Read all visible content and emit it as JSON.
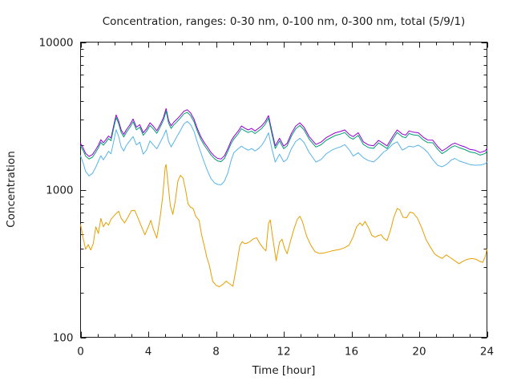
{
  "figure": {
    "title": "Concentration, ranges: 0-30 nm, 0-100 nm, 0-300 nm, total (5/9/1)",
    "xlabel": "Time [hour]",
    "ylabel": "Concentration"
  },
  "chart_data": {
    "type": "line",
    "title": "Concentration, ranges: 0-30 nm, 0-100 nm, 0-300 nm, total (5/9/1)",
    "xlabel": "Time [hour]",
    "ylabel": "Concentration",
    "grid": false,
    "legend": "none",
    "x_axis": {
      "min": 0,
      "max": 24,
      "major_ticks": [
        0,
        4,
        8,
        12,
        16,
        20,
        24
      ],
      "tick_labels": [
        "0",
        "4",
        "8",
        "12",
        "16",
        "20",
        "24"
      ],
      "minor_tick_interval": 1
    },
    "y_axis": {
      "scale": "log",
      "min": 100,
      "max": 10000,
      "major_ticks": [
        100,
        1000,
        10000
      ],
      "tick_labels": [
        "100",
        "1000",
        "10000"
      ]
    },
    "series": [
      {
        "name": "total",
        "color": "#9400d3",
        "x": [
          0,
          0.15,
          0.3,
          0.5,
          0.7,
          0.9,
          1.05,
          1.2,
          1.35,
          1.5,
          1.65,
          1.8,
          2.0,
          2.1,
          2.25,
          2.4,
          2.55,
          2.7,
          2.9,
          3.1,
          3.3,
          3.5,
          3.7,
          3.9,
          4.1,
          4.3,
          4.5,
          4.7,
          4.9,
          5.05,
          5.2,
          5.35,
          5.5,
          5.7,
          5.9,
          6.1,
          6.3,
          6.5,
          6.7,
          6.9,
          7.1,
          7.3,
          7.5,
          7.7,
          7.9,
          8.1,
          8.3,
          8.5,
          8.7,
          8.9,
          9.05,
          9.3,
          9.5,
          9.7,
          9.9,
          10.1,
          10.3,
          10.5,
          10.7,
          10.9,
          11.1,
          11.3,
          11.5,
          11.75,
          12.0,
          12.2,
          12.45,
          12.7,
          12.95,
          13.2,
          13.5,
          13.9,
          14.2,
          14.5,
          14.8,
          15.05,
          15.35,
          15.6,
          15.9,
          16.1,
          16.4,
          16.7,
          17.0,
          17.3,
          17.6,
          17.9,
          18.1,
          18.45,
          18.7,
          19.0,
          19.2,
          19.4,
          19.65,
          19.95,
          20.25,
          20.5,
          20.8,
          21.1,
          21.35,
          21.6,
          21.9,
          22.1,
          22.4,
          22.7,
          23.0,
          23.3,
          23.6,
          23.9,
          24.0
        ],
        "y": [
          2060,
          1920,
          1760,
          1680,
          1730,
          1870,
          2000,
          2180,
          2080,
          2190,
          2310,
          2240,
          2870,
          3210,
          2920,
          2540,
          2370,
          2540,
          2740,
          3010,
          2650,
          2760,
          2430,
          2590,
          2840,
          2690,
          2510,
          2760,
          3090,
          3550,
          2940,
          2710,
          2860,
          3010,
          3190,
          3400,
          3480,
          3310,
          3010,
          2590,
          2290,
          2090,
          1940,
          1790,
          1690,
          1630,
          1615,
          1700,
          1900,
          2150,
          2290,
          2490,
          2700,
          2610,
          2540,
          2600,
          2500,
          2600,
          2710,
          2890,
          3180,
          2490,
          1980,
          2230,
          1975,
          2060,
          2400,
          2690,
          2840,
          2650,
          2290,
          2025,
          2100,
          2250,
          2350,
          2430,
          2480,
          2540,
          2350,
          2290,
          2430,
          2110,
          2010,
          1985,
          2160,
          2050,
          1980,
          2310,
          2540,
          2380,
          2345,
          2500,
          2455,
          2430,
          2260,
          2170,
          2165,
          1955,
          1830,
          1905,
          2020,
          2070,
          2000,
          1950,
          1875,
          1850,
          1785,
          1835,
          1905
        ]
      },
      {
        "name": "0-300 nm",
        "color": "#009e73",
        "x": [
          0,
          0.15,
          0.3,
          0.5,
          0.7,
          0.9,
          1.05,
          1.2,
          1.35,
          1.5,
          1.65,
          1.8,
          2.0,
          2.1,
          2.25,
          2.4,
          2.55,
          2.7,
          2.9,
          3.1,
          3.3,
          3.5,
          3.7,
          3.9,
          4.1,
          4.3,
          4.5,
          4.7,
          4.9,
          5.05,
          5.2,
          5.35,
          5.5,
          5.7,
          5.9,
          6.1,
          6.3,
          6.5,
          6.7,
          6.9,
          7.1,
          7.3,
          7.5,
          7.7,
          7.9,
          8.1,
          8.3,
          8.5,
          8.7,
          8.9,
          9.05,
          9.3,
          9.5,
          9.7,
          9.9,
          10.1,
          10.3,
          10.5,
          10.7,
          10.9,
          11.1,
          11.3,
          11.5,
          11.75,
          12.0,
          12.2,
          12.45,
          12.7,
          12.95,
          13.2,
          13.5,
          13.9,
          14.2,
          14.5,
          14.8,
          15.05,
          15.35,
          15.6,
          15.9,
          16.1,
          16.4,
          16.7,
          17.0,
          17.3,
          17.6,
          17.9,
          18.1,
          18.45,
          18.7,
          19.0,
          19.2,
          19.4,
          19.65,
          19.95,
          20.25,
          20.5,
          20.8,
          21.1,
          21.35,
          21.6,
          21.9,
          22.1,
          22.4,
          22.7,
          23.0,
          23.3,
          23.6,
          23.9,
          24.0
        ],
        "y": [
          1980,
          1845,
          1690,
          1615,
          1660,
          1795,
          1920,
          2095,
          2000,
          2100,
          2220,
          2150,
          2755,
          3080,
          2805,
          2440,
          2275,
          2440,
          2630,
          2890,
          2545,
          2650,
          2335,
          2490,
          2725,
          2580,
          2410,
          2650,
          2965,
          3410,
          2820,
          2600,
          2745,
          2890,
          3060,
          3265,
          3340,
          3175,
          2890,
          2485,
          2200,
          2005,
          1860,
          1720,
          1625,
          1565,
          1550,
          1630,
          1825,
          2065,
          2200,
          2390,
          2590,
          2505,
          2440,
          2495,
          2400,
          2495,
          2600,
          2775,
          3050,
          2390,
          1900,
          2140,
          1895,
          1980,
          2305,
          2580,
          2725,
          2545,
          2200,
          1945,
          2015,
          2160,
          2255,
          2330,
          2380,
          2440,
          2255,
          2200,
          2330,
          2025,
          1930,
          1905,
          2075,
          1970,
          1900,
          2215,
          2440,
          2285,
          2250,
          2400,
          2355,
          2330,
          2170,
          2085,
          2080,
          1875,
          1755,
          1830,
          1940,
          1985,
          1920,
          1870,
          1800,
          1775,
          1715,
          1760,
          1830
        ]
      },
      {
        "name": "0-100 nm",
        "color": "#56b4e9",
        "x": [
          0,
          0.15,
          0.3,
          0.5,
          0.7,
          0.9,
          1.05,
          1.2,
          1.35,
          1.5,
          1.65,
          1.8,
          2.0,
          2.1,
          2.25,
          2.4,
          2.55,
          2.7,
          2.9,
          3.1,
          3.3,
          3.5,
          3.7,
          3.9,
          4.1,
          4.3,
          4.5,
          4.7,
          4.9,
          5.05,
          5.2,
          5.35,
          5.5,
          5.7,
          5.9,
          6.1,
          6.3,
          6.5,
          6.7,
          6.9,
          7.1,
          7.3,
          7.5,
          7.7,
          7.9,
          8.1,
          8.3,
          8.5,
          8.7,
          8.9,
          9.05,
          9.3,
          9.5,
          9.7,
          9.9,
          10.1,
          10.3,
          10.5,
          10.7,
          10.9,
          11.1,
          11.3,
          11.5,
          11.75,
          12.0,
          12.2,
          12.45,
          12.7,
          12.95,
          13.2,
          13.5,
          13.9,
          14.2,
          14.5,
          14.8,
          15.05,
          15.35,
          15.6,
          15.9,
          16.1,
          16.4,
          16.7,
          17.0,
          17.3,
          17.6,
          17.9,
          18.1,
          18.45,
          18.7,
          19.0,
          19.2,
          19.4,
          19.65,
          19.95,
          20.25,
          20.5,
          20.8,
          21.1,
          21.35,
          21.6,
          21.9,
          22.1,
          22.4,
          22.7,
          23.0,
          23.3,
          23.6,
          23.9,
          24.0
        ],
        "y": [
          1700,
          1520,
          1330,
          1240,
          1290,
          1420,
          1560,
          1700,
          1590,
          1700,
          1820,
          1750,
          2250,
          2550,
          2300,
          1950,
          1830,
          1990,
          2140,
          2290,
          2010,
          2100,
          1740,
          1860,
          2140,
          2010,
          1890,
          2090,
          2320,
          2540,
          2120,
          1950,
          2090,
          2300,
          2520,
          2790,
          2900,
          2760,
          2490,
          2090,
          1790,
          1540,
          1340,
          1190,
          1115,
          1085,
          1080,
          1145,
          1300,
          1590,
          1780,
          1890,
          1970,
          1905,
          1850,
          1900,
          1830,
          1895,
          1995,
          2180,
          2430,
          1890,
          1540,
          1740,
          1545,
          1610,
          1890,
          2120,
          2230,
          2090,
          1790,
          1540,
          1600,
          1745,
          1845,
          1900,
          1950,
          2020,
          1845,
          1690,
          1780,
          1645,
          1575,
          1540,
          1650,
          1800,
          1860,
          2040,
          2110,
          1855,
          1905,
          1975,
          1945,
          2005,
          1905,
          1790,
          1600,
          1460,
          1430,
          1480,
          1590,
          1630,
          1560,
          1520,
          1480,
          1465,
          1468,
          1500,
          1540
        ]
      },
      {
        "name": "0-30 nm",
        "color": "#e69f00",
        "x": [
          0,
          0.15,
          0.3,
          0.45,
          0.6,
          0.75,
          0.9,
          1.05,
          1.2,
          1.35,
          1.5,
          1.65,
          1.8,
          1.9,
          2.1,
          2.25,
          2.4,
          2.6,
          2.8,
          3.0,
          3.2,
          3.4,
          3.6,
          3.8,
          4.0,
          4.15,
          4.3,
          4.5,
          4.7,
          4.85,
          5.0,
          5.05,
          5.15,
          5.3,
          5.45,
          5.6,
          5.75,
          5.9,
          6.05,
          6.2,
          6.35,
          6.5,
          6.65,
          6.8,
          7.0,
          7.15,
          7.3,
          7.45,
          7.6,
          7.8,
          8.0,
          8.2,
          8.4,
          8.6,
          8.8,
          9.0,
          9.2,
          9.4,
          9.55,
          9.7,
          9.85,
          10.0,
          10.2,
          10.4,
          10.6,
          10.8,
          10.95,
          11.1,
          11.2,
          11.35,
          11.55,
          11.75,
          11.9,
          12.05,
          12.2,
          12.4,
          12.6,
          12.8,
          12.95,
          13.1,
          13.35,
          13.6,
          13.85,
          14.1,
          14.35,
          14.6,
          14.85,
          15.1,
          15.35,
          15.6,
          15.85,
          16.1,
          16.3,
          16.5,
          16.65,
          16.8,
          17.0,
          17.2,
          17.4,
          17.6,
          17.75,
          17.9,
          18.1,
          18.3,
          18.5,
          18.7,
          18.85,
          19.05,
          19.25,
          19.45,
          19.65,
          19.9,
          20.15,
          20.4,
          20.65,
          20.9,
          21.1,
          21.35,
          21.6,
          21.85,
          22.1,
          22.35,
          22.6,
          22.85,
          23.1,
          23.35,
          23.55,
          23.75,
          23.9,
          24.0
        ],
        "y": [
          580,
          470,
          395,
          425,
          390,
          430,
          560,
          505,
          640,
          560,
          600,
          575,
          630,
          650,
          690,
          715,
          640,
          595,
          650,
          720,
          725,
          640,
          560,
          495,
          560,
          620,
          540,
          470,
          650,
          900,
          1420,
          1480,
          1150,
          780,
          680,
          850,
          1150,
          1250,
          1200,
          1000,
          800,
          760,
          745,
          660,
          620,
          495,
          420,
          350,
          310,
          240,
          225,
          220,
          228,
          240,
          230,
          222,
          300,
          415,
          445,
          430,
          435,
          445,
          465,
          472,
          430,
          400,
          385,
          590,
          625,
          470,
          330,
          440,
          462,
          400,
          368,
          450,
          540,
          630,
          660,
          610,
          485,
          420,
          380,
          370,
          372,
          378,
          385,
          390,
          395,
          405,
          420,
          480,
          560,
          595,
          570,
          610,
          555,
          490,
          477,
          490,
          495,
          470,
          452,
          530,
          650,
          745,
          730,
          650,
          645,
          705,
          695,
          640,
          550,
          460,
          410,
          368,
          355,
          342,
          362,
          345,
          330,
          315,
          328,
          338,
          342,
          338,
          328,
          322,
          352,
          395
        ]
      }
    ]
  }
}
